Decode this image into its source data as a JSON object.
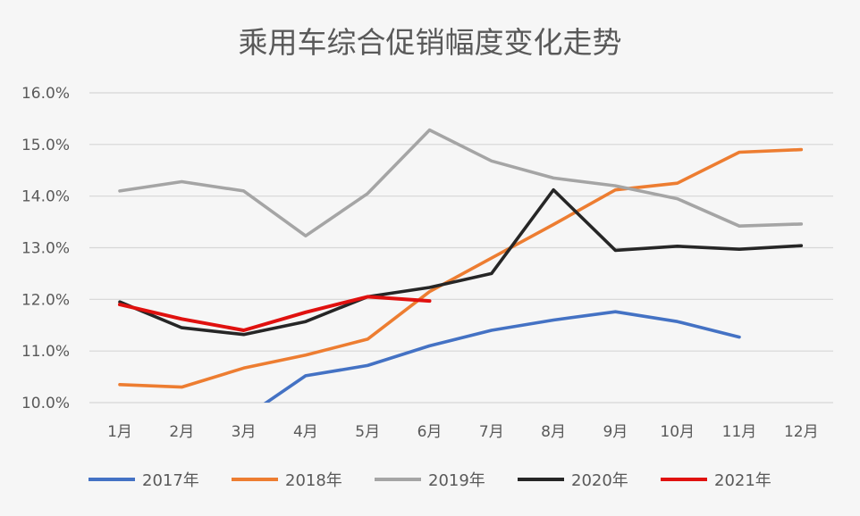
{
  "chart_data": {
    "type": "line",
    "title": "乘用车综合促销幅度变化走势",
    "xlabel": "",
    "ylabel": "",
    "categories": [
      "1月",
      "2月",
      "3月",
      "4月",
      "5月",
      "6月",
      "7月",
      "8月",
      "9月",
      "10月",
      "11月",
      "12月"
    ],
    "ylim": [
      10.0,
      16.0
    ],
    "yticks": [
      "10.0%",
      "11.0%",
      "12.0%",
      "13.0%",
      "14.0%",
      "15.0%",
      "16.0%"
    ],
    "grid": true,
    "legend_position": "bottom",
    "series": [
      {
        "name": "2017年",
        "color": "#4472c4",
        "values": [
          null,
          null,
          9.7,
          10.52,
          10.72,
          11.1,
          11.4,
          11.6,
          11.76,
          11.57,
          11.27,
          null
        ]
      },
      {
        "name": "2018年",
        "color": "#ed7d31",
        "values": [
          10.35,
          10.3,
          10.67,
          10.92,
          11.23,
          12.15,
          12.8,
          13.45,
          14.12,
          14.25,
          14.85,
          14.9
        ]
      },
      {
        "name": "2019年",
        "color": "#a5a5a5",
        "values": [
          14.1,
          14.28,
          14.1,
          13.23,
          14.05,
          15.28,
          14.68,
          14.35,
          14.2,
          13.95,
          13.42,
          13.46
        ]
      },
      {
        "name": "2020年",
        "color": "#262626",
        "values": [
          11.95,
          11.45,
          11.32,
          11.57,
          12.05,
          12.23,
          12.5,
          14.12,
          12.95,
          13.03,
          12.97,
          13.04
        ]
      },
      {
        "name": "2021年",
        "color": "#e0110f",
        "values": [
          11.9,
          11.62,
          11.4,
          11.75,
          12.05,
          11.97,
          null,
          null,
          null,
          null,
          null,
          null
        ]
      }
    ]
  }
}
